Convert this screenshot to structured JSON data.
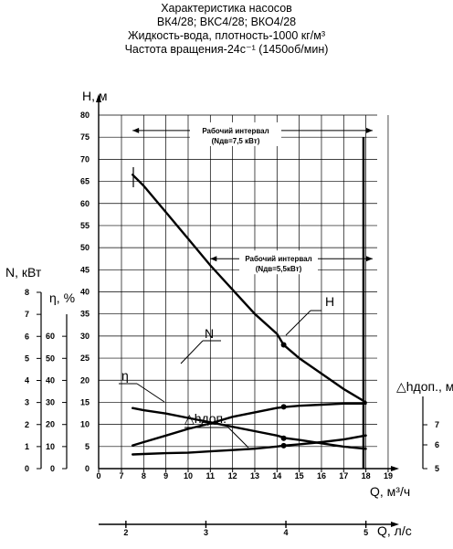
{
  "title_lines": [
    "Характеристика насосов",
    "ВК4/28; ВКС4/28; ВКО4/28",
    "Жидкость-вода, плотность-1000 кг/м³",
    "Частота вращения-24с⁻¹ (1450об/мин)"
  ],
  "chart_data": {
    "type": "line",
    "grid": true,
    "x": {
      "label": "Q, м³/ч",
      "range": [
        0,
        19
      ],
      "ticks": [
        0,
        7,
        8,
        9,
        10,
        11,
        12,
        13,
        14,
        15,
        16,
        17,
        18,
        19
      ]
    },
    "x2": {
      "label": "Q, л/с",
      "ticks": [
        2,
        3,
        4,
        5
      ],
      "factor_m3h_per_ls": 3.6
    },
    "axes": {
      "H": {
        "label": "H, м",
        "range": [
          0,
          80
        ],
        "ticks": [
          0,
          5,
          10,
          15,
          20,
          25,
          30,
          35,
          40,
          45,
          50,
          55,
          60,
          65,
          70,
          75,
          80
        ]
      },
      "N": {
        "label": "N, кВт",
        "range": [
          0,
          8
        ],
        "ticks": [
          0,
          1,
          2,
          3,
          4,
          5,
          6,
          7,
          8
        ]
      },
      "eta": {
        "label": "η, %",
        "range": [
          0,
          70
        ],
        "ticks": [
          0,
          10,
          20,
          30,
          40,
          50,
          60
        ]
      },
      "dh": {
        "label": "△hдоп., м",
        "ticks": [
          5,
          6,
          7
        ]
      }
    },
    "series": [
      {
        "name": "H",
        "axis": "H",
        "x": [
          7.5,
          8,
          9,
          10,
          11,
          12,
          13,
          14,
          14.3,
          15,
          16,
          17,
          18
        ],
        "y": [
          66.5,
          64,
          58,
          52,
          46,
          40.5,
          35,
          30.5,
          28,
          25,
          21.5,
          18,
          15
        ]
      },
      {
        "name": "N",
        "axis": "N",
        "x": [
          7.5,
          8,
          9,
          10,
          11,
          12,
          13,
          14,
          14.4,
          15,
          16,
          17,
          18
        ],
        "y": [
          2.75,
          2.65,
          2.5,
          2.3,
          2.1,
          1.9,
          1.7,
          1.5,
          1.38,
          1.3,
          1.15,
          1.0,
          0.9
        ]
      },
      {
        "name": "η",
        "axis": "eta",
        "x": [
          7.5,
          8,
          9,
          10,
          11,
          12,
          13,
          14,
          14.4,
          15,
          16,
          17,
          18
        ],
        "y": [
          10.5,
          12,
          15,
          18,
          20.5,
          23.5,
          25.5,
          27.5,
          28,
          28.5,
          29,
          29.5,
          29.5
        ]
      },
      {
        "name": "△hдоп.",
        "axis": "H",
        "x": [
          7.5,
          8,
          9,
          10,
          11,
          12,
          13,
          14,
          14.3,
          15,
          16,
          17,
          18
        ],
        "y": [
          3.2,
          3.3,
          3.5,
          3.6,
          3.9,
          4.2,
          4.5,
          5.0,
          5.2,
          5.5,
          6.0,
          6.6,
          7.5
        ]
      }
    ],
    "markers": [
      {
        "series": "H",
        "x": 14.3,
        "y": 28
      },
      {
        "series": "N",
        "x": 14.3,
        "y": 1.38
      },
      {
        "series": "η",
        "x": 14.3,
        "y": 28
      },
      {
        "series": "△hдоп.",
        "x": 14.3,
        "y": 5.2
      }
    ],
    "annotations": [
      {
        "text": "Рабочий интервал",
        "subtext": "(Nдв=7,5 кВт)",
        "from": 7.5,
        "to": 18.3,
        "level": 76.5
      },
      {
        "text": "Рабочий интервал",
        "subtext": "(Nдв=5,5кВт)",
        "from": 11,
        "to": 18.3,
        "level": 47.5
      }
    ]
  }
}
